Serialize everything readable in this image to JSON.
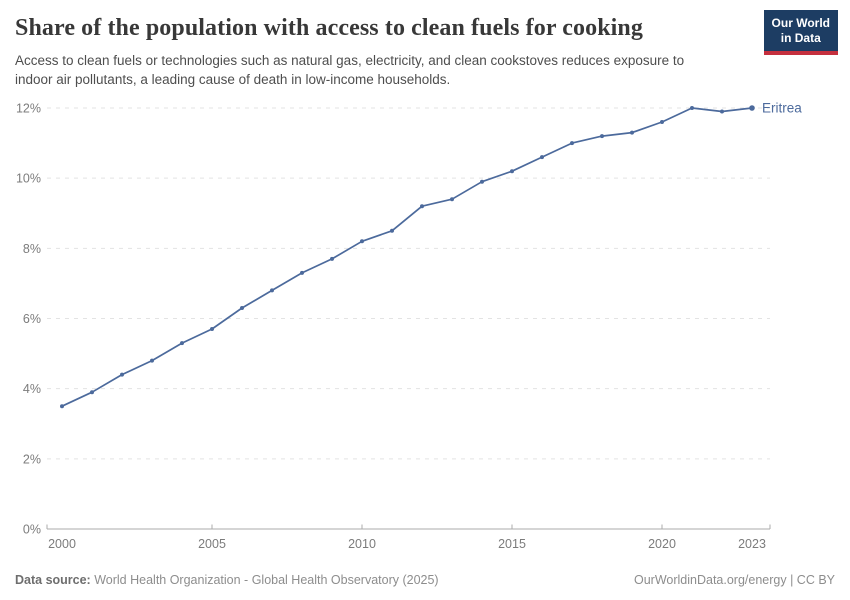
{
  "header": {
    "title": "Share of the population with access to clean fuels for cooking",
    "subtitle": "Access to clean fuels or technologies such as natural gas, electricity, and clean cookstoves reduces exposure to indoor air pollutants, a leading cause of death in low-income households.",
    "logo": {
      "line1": "Our World",
      "line2": "in Data",
      "bg_color": "#1d3d63",
      "accent_color": "#c5303e"
    }
  },
  "chart_data": {
    "type": "line",
    "title": "Share of the population with access to clean fuels for cooking",
    "x": [
      2000,
      2001,
      2002,
      2003,
      2004,
      2005,
      2006,
      2007,
      2008,
      2009,
      2010,
      2011,
      2012,
      2013,
      2014,
      2015,
      2016,
      2017,
      2018,
      2019,
      2020,
      2021,
      2022,
      2023
    ],
    "series": [
      {
        "name": "Eritrea",
        "color": "#4C6A9C",
        "values": [
          3.5,
          3.9,
          4.4,
          4.8,
          5.3,
          5.7,
          6.3,
          6.8,
          7.3,
          7.7,
          8.2,
          8.5,
          9.2,
          9.4,
          9.9,
          10.2,
          10.6,
          11.0,
          11.2,
          11.3,
          11.6,
          12.0,
          11.9,
          12.0
        ]
      }
    ],
    "xlabel": "",
    "ylabel": "",
    "unit": "%",
    "ylim": [
      0,
      12
    ],
    "yticks": [
      {
        "value": 0,
        "label": "0%"
      },
      {
        "value": 2,
        "label": "2%"
      },
      {
        "value": 4,
        "label": "4%"
      },
      {
        "value": 6,
        "label": "6%"
      },
      {
        "value": 8,
        "label": "8%"
      },
      {
        "value": 10,
        "label": "10%"
      },
      {
        "value": 12,
        "label": "12%"
      }
    ],
    "xticks": [
      {
        "value": 2000,
        "label": "2000"
      },
      {
        "value": 2005,
        "label": "2005"
      },
      {
        "value": 2010,
        "label": "2010"
      },
      {
        "value": 2015,
        "label": "2015"
      },
      {
        "value": 2020,
        "label": "2020"
      },
      {
        "value": 2023,
        "label": "2023"
      }
    ],
    "grid": "horizontal-dashed",
    "legend_position": "end-of-line",
    "colors": {
      "gridline": "#e3e3e3",
      "axis": "#ababab",
      "tick_label": "#7c7c7c"
    }
  },
  "footer": {
    "datasource_label": "Data source:",
    "datasource": "World Health Organization - Global Health Observatory (2025)",
    "license": "OurWorldinData.org/energy | CC BY"
  }
}
